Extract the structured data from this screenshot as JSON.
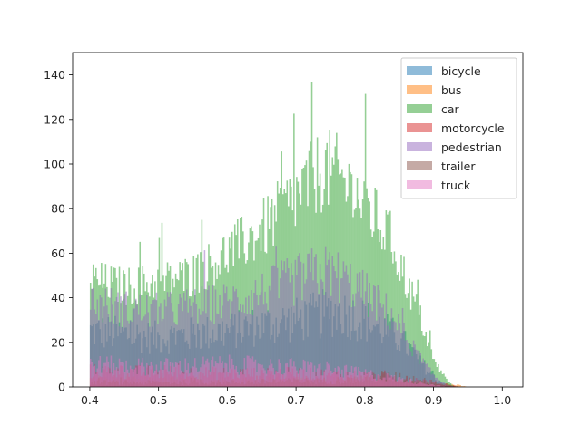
{
  "chart_data": {
    "type": "histogram",
    "title": "",
    "xlabel": "",
    "ylabel": "",
    "xlim": [
      0.375,
      1.03
    ],
    "ylim": [
      0,
      150
    ],
    "x_ticks": [
      0.4,
      0.5,
      0.6,
      0.7,
      0.8,
      0.9,
      1.0
    ],
    "x_tick_labels": [
      "0.4",
      "0.5",
      "0.6",
      "0.7",
      "0.8",
      "0.9",
      "1.0"
    ],
    "y_ticks": [
      0,
      20,
      40,
      60,
      80,
      100,
      120,
      140
    ],
    "y_tick_labels": [
      "0",
      "20",
      "40",
      "60",
      "80",
      "100",
      "120",
      "140"
    ],
    "bin_range": [
      0.4,
      1.0
    ],
    "bin_width": 0.002,
    "legend": {
      "position": "top-right"
    },
    "series": [
      {
        "name": "bicycle",
        "color": "#1f77b4",
        "profile": [
          [
            0.4,
            25
          ],
          [
            0.5,
            22
          ],
          [
            0.6,
            25
          ],
          [
            0.7,
            30
          ],
          [
            0.76,
            34
          ],
          [
            0.8,
            30
          ],
          [
            0.85,
            22
          ],
          [
            0.88,
            12
          ],
          [
            0.9,
            4
          ],
          [
            0.92,
            1
          ],
          [
            0.94,
            0
          ]
        ],
        "noise": 0.35
      },
      {
        "name": "bus",
        "color": "#ff7f0e",
        "profile": [
          [
            0.4,
            3
          ],
          [
            0.6,
            3
          ],
          [
            0.8,
            3
          ],
          [
            0.88,
            2
          ],
          [
            0.93,
            1
          ],
          [
            0.95,
            0
          ]
        ],
        "noise": 0.6
      },
      {
        "name": "car",
        "color": "#2ca02c",
        "profile": [
          [
            0.4,
            48
          ],
          [
            0.45,
            45
          ],
          [
            0.5,
            47
          ],
          [
            0.55,
            50
          ],
          [
            0.6,
            60
          ],
          [
            0.65,
            70
          ],
          [
            0.7,
            85
          ],
          [
            0.74,
            98
          ],
          [
            0.76,
            95
          ],
          [
            0.8,
            82
          ],
          [
            0.84,
            65
          ],
          [
            0.86,
            48
          ],
          [
            0.88,
            32
          ],
          [
            0.9,
            12
          ],
          [
            0.92,
            3
          ],
          [
            0.93,
            0
          ]
        ],
        "noise": 0.2
      },
      {
        "name": "motorcycle",
        "color": "#d62728",
        "profile": [
          [
            0.4,
            7
          ],
          [
            0.6,
            6
          ],
          [
            0.7,
            6
          ],
          [
            0.8,
            5
          ],
          [
            0.88,
            3
          ],
          [
            0.92,
            1
          ],
          [
            0.94,
            0
          ]
        ],
        "noise": 0.5
      },
      {
        "name": "pedestrian",
        "color": "#9467bd",
        "profile": [
          [
            0.4,
            38
          ],
          [
            0.45,
            35
          ],
          [
            0.5,
            34
          ],
          [
            0.55,
            36
          ],
          [
            0.6,
            38
          ],
          [
            0.65,
            42
          ],
          [
            0.7,
            48
          ],
          [
            0.74,
            52
          ],
          [
            0.76,
            50
          ],
          [
            0.8,
            42
          ],
          [
            0.84,
            32
          ],
          [
            0.86,
            22
          ],
          [
            0.88,
            13
          ],
          [
            0.9,
            5
          ],
          [
            0.92,
            1
          ],
          [
            0.93,
            0
          ]
        ],
        "noise": 0.25
      },
      {
        "name": "trailer",
        "color": "#8c564b",
        "profile": [
          [
            0.4,
            2
          ],
          [
            0.6,
            2
          ],
          [
            0.78,
            3
          ],
          [
            0.82,
            5
          ],
          [
            0.86,
            4
          ],
          [
            0.9,
            2
          ],
          [
            0.93,
            0
          ]
        ],
        "noise": 0.6
      },
      {
        "name": "truck",
        "color": "#e377c2",
        "profile": [
          [
            0.4,
            10
          ],
          [
            0.5,
            9
          ],
          [
            0.6,
            10
          ],
          [
            0.7,
            9
          ],
          [
            0.8,
            6
          ],
          [
            0.86,
            3
          ],
          [
            0.9,
            1
          ],
          [
            0.92,
            0
          ]
        ],
        "noise": 0.45
      }
    ]
  }
}
